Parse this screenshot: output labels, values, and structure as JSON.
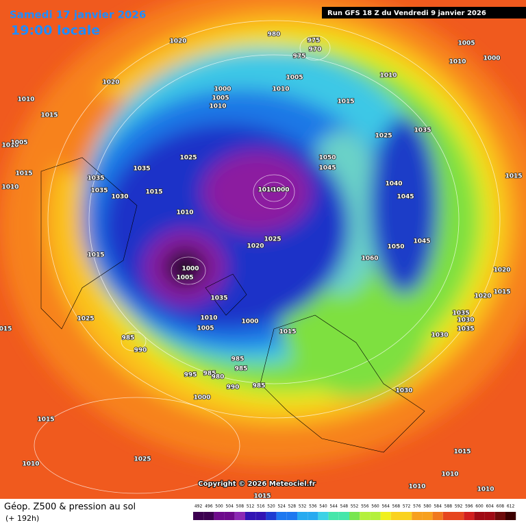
{
  "header": {
    "date": "Samedi 17 janvier 2026",
    "time": "19:00 locale",
    "run": "Run GFS 18 Z du Vendredi 9 janvier 2026"
  },
  "copyright": "Copyright © 2026 Meteociel.fr",
  "footer": {
    "title": "Géop. Z500 & pression au sol",
    "lead": "(+ 192h)"
  },
  "colorbar": [
    492,
    496,
    500,
    504,
    508,
    512,
    516,
    520,
    524,
    528,
    532,
    536,
    540,
    544,
    548,
    552,
    556,
    560,
    564,
    568,
    572,
    576,
    580,
    584,
    588,
    592,
    596,
    600,
    604,
    608,
    612
  ],
  "isobar_labels": [
    "1020",
    "1020",
    "1010",
    "1015",
    "1010",
    "1005",
    "1015",
    "1010",
    "1035",
    "1035",
    "1035",
    "1030",
    "1015",
    "1025",
    "1010",
    "1015",
    "1025",
    "015",
    "985",
    "990",
    "995",
    "985",
    "980",
    "985",
    "985",
    "990",
    "985",
    "1000",
    "1015",
    "1025",
    "1010",
    "1015",
    "980",
    "975",
    "970",
    "975",
    "1005",
    "1010",
    "1010",
    "1000",
    "1005",
    "1010",
    "1015",
    "1025",
    "1035",
    "1050",
    "1045",
    "1040",
    "1045",
    "1050",
    "1060",
    "1045",
    "1005",
    "1010",
    "1000",
    "1015",
    "1020",
    "1020",
    "1015",
    "1035",
    "1030",
    "1035",
    "1030",
    "1030",
    "1015",
    "1010",
    "1010",
    "1010",
    "1025",
    "1020",
    "1010",
    "1000",
    "1000",
    "1005",
    "1010",
    "1005",
    "1000",
    "1015",
    "1035"
  ]
}
